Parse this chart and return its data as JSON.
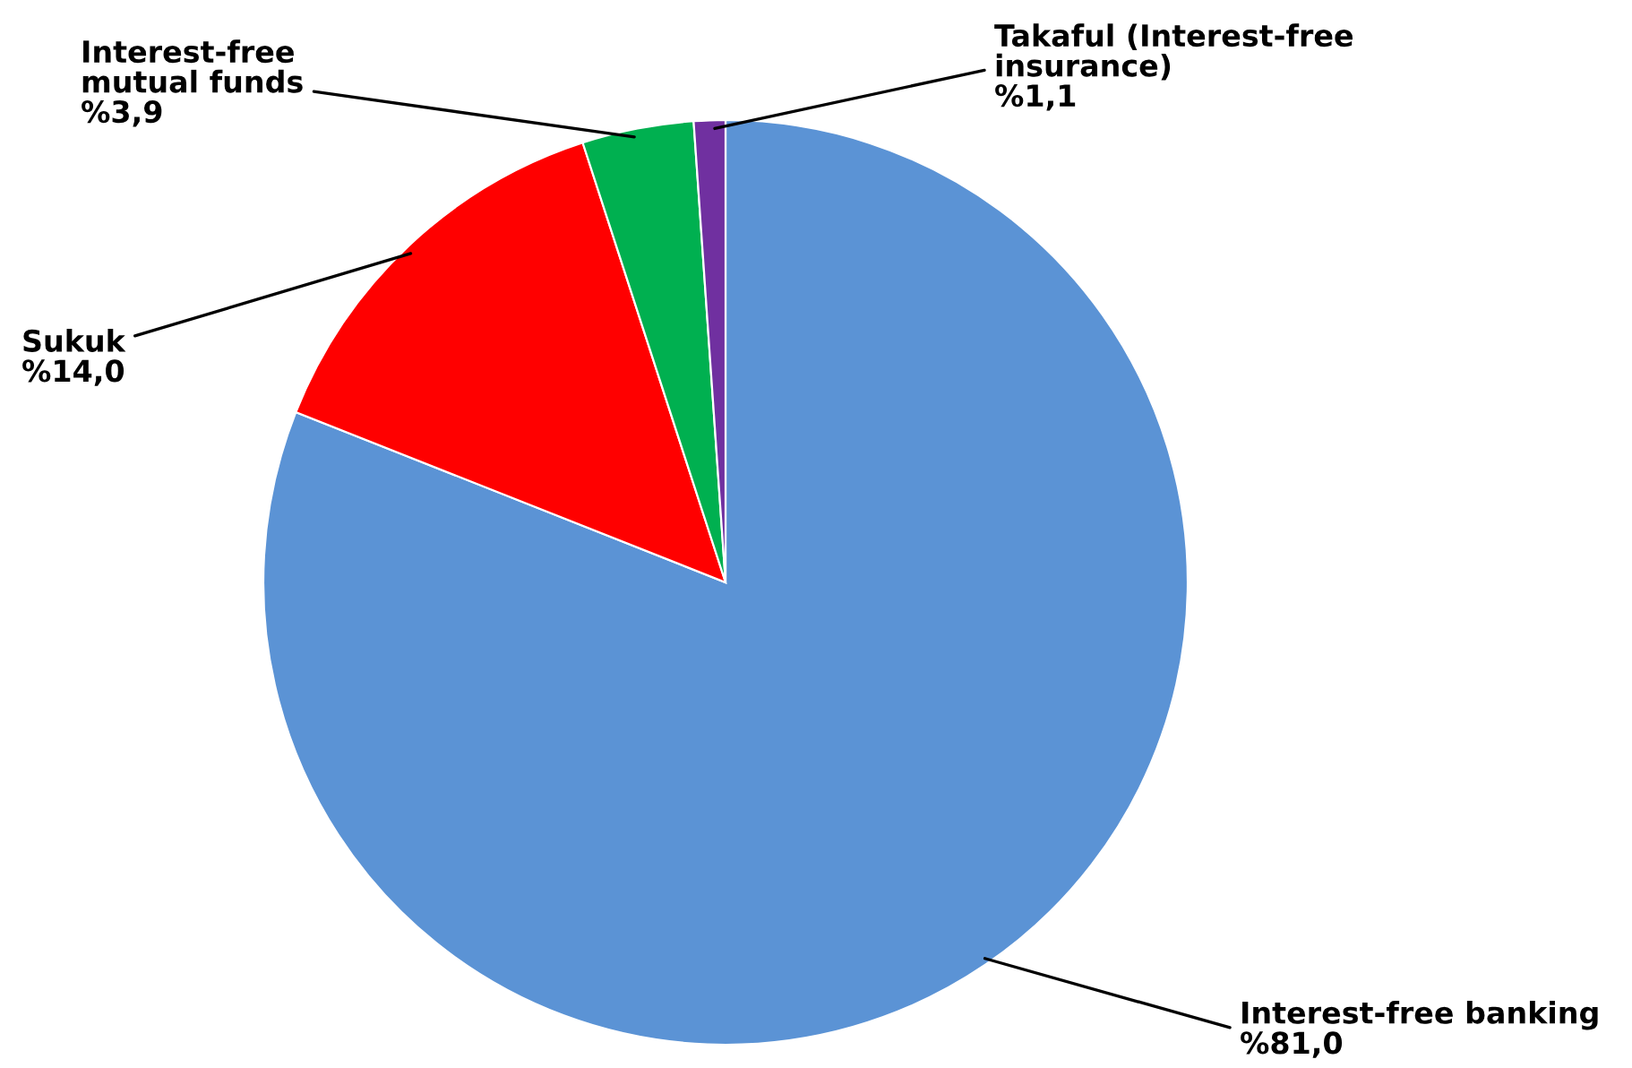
{
  "chart_data": {
    "type": "pie",
    "categories": [
      "Interest-free banking",
      "Sukuk",
      "Interest-free mutual funds",
      "Takaful (Interest-free insurance)"
    ],
    "values": [
      81.0,
      14.0,
      3.9,
      1.1
    ],
    "value_labels": [
      "%81,0",
      "%14,0",
      "%3,9",
      "%1,1"
    ],
    "colors": [
      "#5b93d5",
      "#ff0000",
      "#00b050",
      "#7030a0"
    ],
    "legend": false
  }
}
